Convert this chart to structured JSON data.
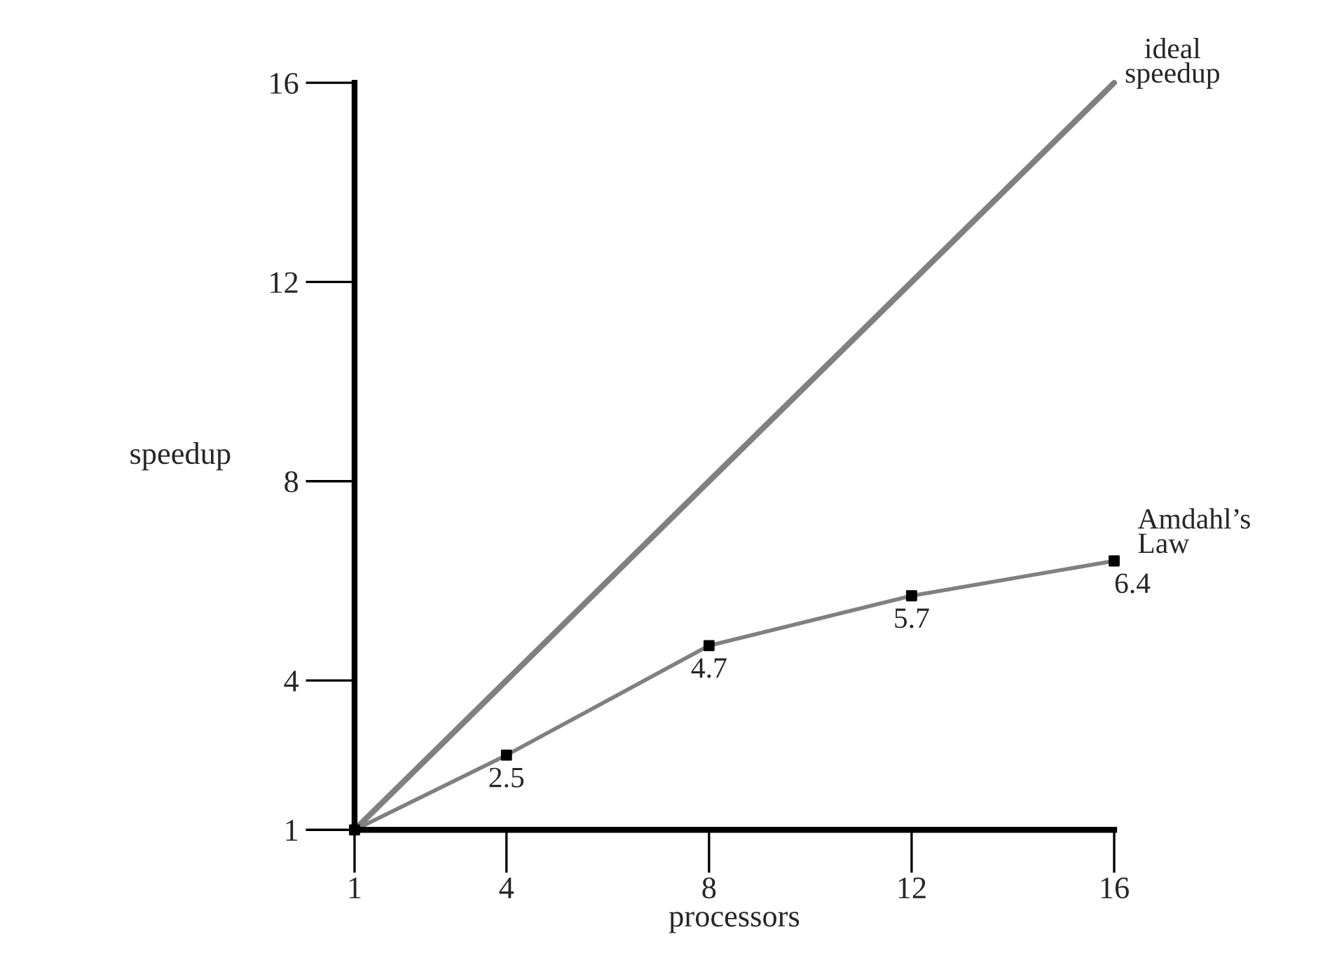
{
  "chart_data": {
    "type": "line",
    "xlabel": "processors",
    "ylabel": "speedup",
    "xlim": [
      1,
      16
    ],
    "ylim": [
      1,
      16
    ],
    "xticks": [
      1,
      4,
      8,
      12,
      16
    ],
    "yticks": [
      1,
      4,
      8,
      12,
      16
    ],
    "grid": false,
    "legend": false,
    "series": [
      {
        "name": "ideal speedup",
        "color": "#808080",
        "x": [
          1,
          16
        ],
        "values": [
          1,
          16
        ]
      },
      {
        "name": "Amdahl’s Law",
        "color": "#808080",
        "x": [
          1,
          4,
          8,
          12,
          16
        ],
        "values": [
          1,
          2.5,
          4.7,
          5.7,
          6.4
        ],
        "marker": "square",
        "value_labels": [
          null,
          "2.5",
          "4.7",
          "5.7",
          "6.4"
        ]
      }
    ]
  }
}
